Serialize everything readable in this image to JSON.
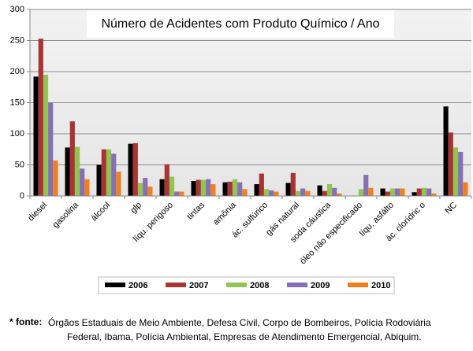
{
  "chart_data": {
    "type": "bar",
    "title": "Número de Acidentes com Produto Químico / Ano",
    "categories": [
      "diesel",
      "gasolina",
      "álcool",
      "glp",
      "líqu. perigoso",
      "tintas",
      "amônia",
      "ác. sulfúrico",
      "gás natural",
      "soda cáustica",
      "óleo não especificado",
      "líqu. asfálto",
      "ác. clorídric o",
      "NC"
    ],
    "series": [
      {
        "name": "2006",
        "color": "#000000",
        "values": [
          192,
          78,
          50,
          84,
          27,
          24,
          22,
          19,
          21,
          17,
          0,
          12,
          6,
          144
        ]
      },
      {
        "name": "2007",
        "color": "#a83434",
        "values": [
          253,
          120,
          75,
          85,
          51,
          26,
          23,
          36,
          37,
          8,
          0,
          7,
          12,
          102
        ]
      },
      {
        "name": "2008",
        "color": "#92c452",
        "values": [
          195,
          79,
          75,
          21,
          31,
          26,
          27,
          11,
          8,
          19,
          11,
          12,
          13,
          78
        ]
      },
      {
        "name": "2009",
        "color": "#8470b4",
        "values": [
          150,
          44,
          68,
          29,
          7,
          27,
          22,
          9,
          12,
          13,
          34,
          12,
          12,
          71
        ]
      },
      {
        "name": "2010",
        "color": "#f0801e",
        "values": [
          57,
          27,
          39,
          15,
          7,
          19,
          11,
          7,
          8,
          4,
          13,
          12,
          4,
          22
        ]
      }
    ],
    "ylim": [
      0,
      300
    ],
    "yticks": [
      0,
      50,
      100,
      150,
      200,
      250,
      300
    ],
    "grid": true,
    "footnote_label": "* fonte:",
    "footnote": [
      "Órgãos Estaduais de Meio Ambiente, Defesa Civil, Corpo de Bombeiros, Polícia Rodoviária",
      "Federal, Ibama, Polícia Ambiental, Empresas de Atendimento Emergencial, Abiquim."
    ]
  }
}
